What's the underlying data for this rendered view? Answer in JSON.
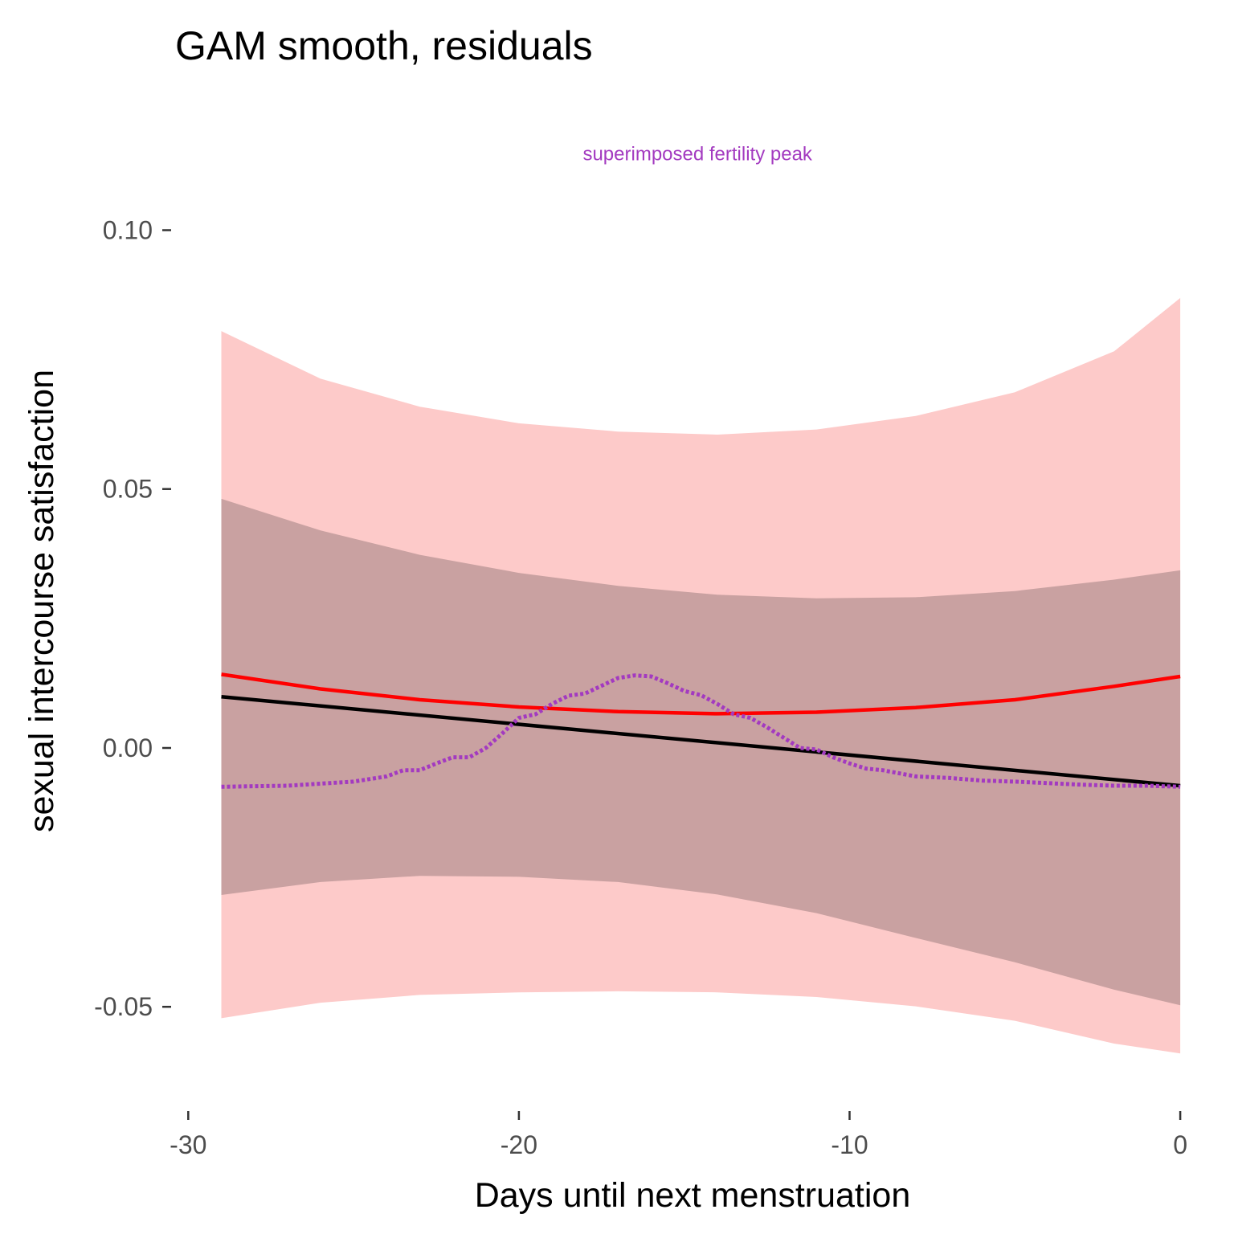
{
  "chart_data": {
    "type": "line",
    "title": "GAM smooth, residuals",
    "xlabel": "Days until next menstruation",
    "ylabel": "sexual intercourse satisfaction",
    "xlim": [
      -30.3,
      0.8
    ],
    "ylim": [
      -0.0675,
      0.11
    ],
    "x_ticks": [
      -30,
      -20,
      -10,
      0
    ],
    "x_tick_labels": [
      "-30",
      "-20",
      "-10",
      "0"
    ],
    "y_ticks": [
      -0.05,
      0.0,
      0.05,
      0.1
    ],
    "y_tick_labels": [
      "-0.05",
      "0.00",
      "0.05",
      "0.10"
    ],
    "grid": false,
    "annotation": {
      "text": "superimposed fertility peak",
      "color": "#a33ac0",
      "x": -14.6,
      "y": 0.1135
    },
    "colors": {
      "outer_band": "#fdcac9",
      "inner_band": "#c9a1a1",
      "gam_line": "#ff0000",
      "linear_line": "#000000",
      "fertility_line": "#a33ac0"
    },
    "series": [
      {
        "kind": "band",
        "x": [
          -29,
          -26,
          -23,
          -20,
          -17,
          -14,
          -11,
          -8,
          -5,
          -2,
          0
        ],
        "upper": [
          0.0805,
          0.0713,
          0.0659,
          0.0627,
          0.0611,
          0.0605,
          0.0615,
          0.0641,
          0.0687,
          0.0766,
          0.0869
        ],
        "lower": [
          -0.0522,
          -0.0492,
          -0.0477,
          -0.0472,
          -0.047,
          -0.0472,
          -0.0481,
          -0.0499,
          -0.0527,
          -0.0571,
          -0.059
        ]
      },
      {
        "kind": "band",
        "x": [
          -29,
          -26,
          -23,
          -20,
          -17,
          -14,
          -11,
          -8,
          -5,
          -2,
          0
        ],
        "upper": [
          0.0481,
          0.042,
          0.0373,
          0.0338,
          0.0313,
          0.0296,
          0.0289,
          0.0291,
          0.0303,
          0.0325,
          0.0343
        ],
        "lower": [
          -0.0284,
          -0.0259,
          -0.0247,
          -0.0249,
          -0.0259,
          -0.0283,
          -0.0319,
          -0.0367,
          -0.0414,
          -0.0467,
          -0.0497
        ]
      },
      {
        "kind": "line",
        "x": [
          -29,
          -26,
          -23,
          -20,
          -17,
          -14,
          -11,
          -8,
          -5,
          -2,
          0
        ],
        "y": [
          0.0142,
          0.0114,
          0.0093,
          0.0079,
          0.007,
          0.0066,
          0.0069,
          0.0078,
          0.0093,
          0.0119,
          0.0138
        ]
      },
      {
        "kind": "line",
        "x": [
          -29,
          0
        ],
        "y": [
          0.0099,
          -0.0073
        ]
      },
      {
        "kind": "line",
        "dashed": true,
        "x": [
          -29,
          -27,
          -25,
          -24,
          -23.5,
          -23,
          -22.5,
          -22,
          -21.5,
          -21,
          -20.5,
          -20,
          -19.5,
          -19,
          -18.5,
          -18,
          -17.5,
          -17,
          -16.5,
          -16,
          -15.5,
          -15,
          -14.5,
          -14,
          -13.5,
          -13,
          -12.5,
          -12,
          -11.5,
          -11,
          -10.5,
          -10,
          -9.5,
          -9,
          -8,
          -7,
          -6,
          -5,
          -4,
          -3,
          -2,
          -1,
          0
        ],
        "y": [
          -0.0075,
          -0.0073,
          -0.0065,
          -0.0055,
          -0.0043,
          -0.0043,
          -0.003,
          -0.0018,
          -0.0018,
          0.0,
          0.0028,
          0.0058,
          0.0065,
          0.0085,
          0.0101,
          0.0105,
          0.012,
          0.0135,
          0.014,
          0.0138,
          0.0125,
          0.011,
          0.0102,
          0.0085,
          0.0065,
          0.0058,
          0.004,
          0.002,
          0.0,
          -0.0003,
          -0.0018,
          -0.003,
          -0.004,
          -0.0043,
          -0.0055,
          -0.0058,
          -0.0063,
          -0.0065,
          -0.0068,
          -0.0071,
          -0.0073,
          -0.0073,
          -0.0075
        ]
      }
    ]
  }
}
